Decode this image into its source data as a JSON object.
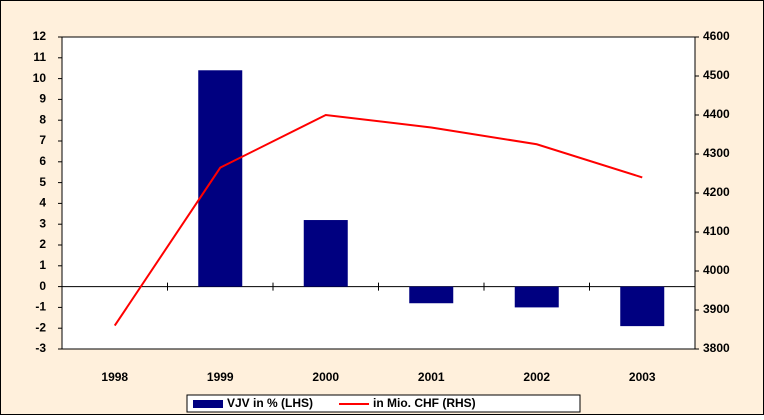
{
  "chart_data": {
    "type": "bar-line",
    "categories": [
      "1998",
      "1999",
      "2000",
      "2001",
      "2002",
      "2003"
    ],
    "series": [
      {
        "name": "VJV in % (LHS)",
        "type": "bar",
        "color": "#000080",
        "axis": "y",
        "values": [
          null,
          10.4,
          3.2,
          -0.8,
          -1.0,
          -1.9
        ]
      },
      {
        "name": "in Mio. CHF (RHS)",
        "type": "line",
        "color": "#ff0000",
        "axis": "y2",
        "values": [
          3860,
          4265,
          4400,
          4368,
          4325,
          4240
        ]
      }
    ],
    "ylim": [
      -3,
      12
    ],
    "yticks": [
      -3,
      -2,
      -1,
      0,
      1,
      2,
      3,
      4,
      5,
      6,
      7,
      8,
      9,
      10,
      11,
      12
    ],
    "y2lim": [
      3800,
      4600
    ],
    "y2ticks": [
      3800,
      3900,
      4000,
      4100,
      4200,
      4300,
      4400,
      4500,
      4600
    ],
    "legend": "bottom",
    "background": "#fff0dc"
  }
}
